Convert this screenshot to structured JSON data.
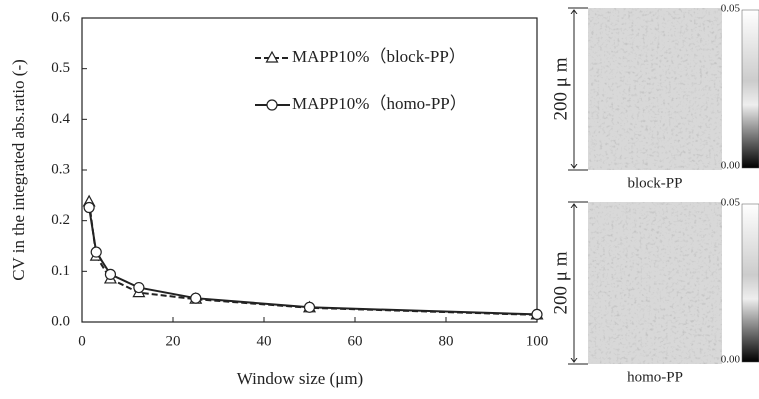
{
  "chart_data": {
    "type": "line",
    "xlabel": "Window size (μm)",
    "ylabel": "CV in the integrated abs.ratio (-)",
    "x": [
      1.5625,
      3.125,
      6.25,
      12.5,
      25,
      50,
      100
    ],
    "series": [
      {
        "name": "MAPP10%（block-PP）",
        "color": "#222222",
        "marker": "triangle",
        "dashed": true,
        "values": [
          0.237,
          0.13,
          0.085,
          0.058,
          0.045,
          0.028,
          0.014
        ]
      },
      {
        "name": "MAPP10%（homo-PP）",
        "color": "#222222",
        "marker": "circle",
        "dashed": false,
        "values": [
          0.226,
          0.138,
          0.094,
          0.068,
          0.047,
          0.029,
          0.015
        ]
      }
    ],
    "xlim": [
      0,
      100
    ],
    "xticks": [
      0,
      20,
      40,
      60,
      80,
      100
    ],
    "ylim": [
      0,
      0.6
    ],
    "yticks": [
      {
        "value": 0,
        "label": "0.0"
      },
      0.1,
      0.2,
      0.3,
      0.4,
      0.5,
      0.6
    ],
    "grid": false,
    "legend": "upper right"
  },
  "images": [
    {
      "label": "block-PP",
      "scale": "200 μ m",
      "colorbar_max": "0.05",
      "colorbar_min": "0.00"
    },
    {
      "label": "homo-PP",
      "scale": "200 μ m",
      "colorbar_max": "0.05",
      "colorbar_min": "0.00"
    }
  ]
}
